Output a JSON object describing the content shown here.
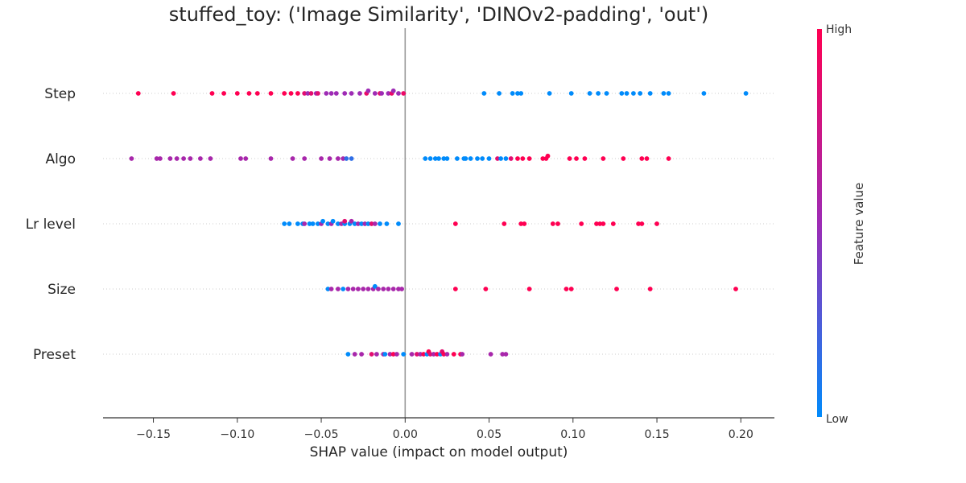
{
  "chart_data": {
    "type": "scatter",
    "subtype": "shap-beeswarm",
    "title": "stuffed_toy: ('Image Similarity', 'DINOv2-padding', 'out')",
    "xlabel": "SHAP value (impact on model output)",
    "xlim": [
      -0.18,
      0.22
    ],
    "xticks": [
      -0.15,
      -0.1,
      -0.05,
      0.0,
      0.05,
      0.1,
      0.15,
      0.2
    ],
    "xtick_labels": [
      "−0.15",
      "−0.10",
      "−0.05",
      "0.00",
      "0.05",
      "0.10",
      "0.15",
      "0.20"
    ],
    "zero_line": 0.0,
    "colorbar": {
      "label": "Feature value",
      "high_label": "High",
      "low_label": "Low",
      "low_color": "#008bfb",
      "mid_color": "#9e2bb5",
      "high_color": "#ff0052"
    },
    "features": [
      {
        "name": "Step",
        "groups": [
          {
            "v": 1.0,
            "x": [
              -0.159,
              -0.138,
              -0.115,
              -0.108,
              -0.1,
              -0.093,
              -0.088,
              -0.08,
              -0.072,
              -0.068,
              -0.064
            ]
          },
          {
            "v": 0.85,
            "x": [
              -0.06,
              -0.056,
              -0.052
            ]
          },
          {
            "v": 0.5,
            "x": [
              -0.058,
              -0.053,
              -0.047,
              -0.044,
              -0.041,
              -0.036,
              -0.032,
              -0.027,
              -0.022,
              -0.018,
              -0.014,
              -0.01,
              -0.007,
              -0.004
            ]
          },
          {
            "v": 0.9,
            "x": [
              -0.023,
              -0.015,
              -0.008,
              -0.001
            ]
          },
          {
            "v": 0.0,
            "x": [
              0.047,
              0.056,
              0.064,
              0.067,
              0.069,
              0.086,
              0.099,
              0.11,
              0.115,
              0.12,
              0.129,
              0.132,
              0.136,
              0.14,
              0.146,
              0.154,
              0.157,
              0.178,
              0.203
            ]
          }
        ]
      },
      {
        "name": "Algo",
        "groups": [
          {
            "v": 0.55,
            "x": [
              -0.163,
              -0.148,
              -0.146,
              -0.14,
              -0.136,
              -0.132,
              -0.128,
              -0.122,
              -0.116,
              -0.098,
              -0.095,
              -0.08,
              -0.067,
              -0.06,
              -0.05,
              -0.045,
              -0.04,
              -0.037
            ]
          },
          {
            "v": 0.15,
            "x": [
              -0.035,
              -0.032
            ]
          },
          {
            "v": 0.0,
            "x": [
              0.012,
              0.015,
              0.018,
              0.02,
              0.023,
              0.025,
              0.031,
              0.035,
              0.036,
              0.039,
              0.043,
              0.046,
              0.05,
              0.057,
              0.06
            ]
          },
          {
            "v": 0.85,
            "x": [
              0.055,
              0.063
            ]
          },
          {
            "v": 1.0,
            "x": [
              0.067,
              0.07,
              0.074,
              0.082,
              0.084,
              0.085,
              0.098,
              0.102,
              0.107,
              0.118,
              0.13,
              0.141,
              0.144,
              0.157
            ]
          }
        ]
      },
      {
        "name": "Lr level",
        "groups": [
          {
            "v": 0.0,
            "x": [
              -0.072,
              -0.069,
              -0.064,
              -0.061,
              -0.057,
              -0.055,
              -0.052,
              -0.049,
              -0.046,
              -0.043,
              -0.04,
              -0.036,
              -0.033,
              -0.03,
              -0.026,
              -0.022,
              -0.015,
              -0.011,
              -0.004
            ]
          },
          {
            "v": 0.55,
            "x": [
              -0.06,
              -0.05,
              -0.044,
              -0.038,
              -0.032,
              -0.028,
              -0.024,
              -0.018
            ]
          },
          {
            "v": 0.85,
            "x": [
              -0.036,
              -0.02
            ]
          },
          {
            "v": 1.0,
            "x": [
              0.03,
              0.059,
              0.069,
              0.071,
              0.088,
              0.091,
              0.105,
              0.114,
              0.116,
              0.118,
              0.124,
              0.139,
              0.141,
              0.15
            ]
          }
        ]
      },
      {
        "name": "Size",
        "groups": [
          {
            "v": 0.0,
            "x": [
              -0.046,
              -0.037,
              -0.018
            ]
          },
          {
            "v": 0.55,
            "x": [
              -0.044,
              -0.04,
              -0.034,
              -0.031,
              -0.028,
              -0.025,
              -0.022,
              -0.019,
              -0.016,
              -0.013,
              -0.01,
              -0.007,
              -0.004,
              -0.002
            ]
          },
          {
            "v": 1.0,
            "x": [
              0.03,
              0.048,
              0.074,
              0.096,
              0.099,
              0.126,
              0.146,
              0.197
            ]
          }
        ]
      },
      {
        "name": "Preset",
        "groups": [
          {
            "v": 0.0,
            "x": [
              -0.034,
              -0.012,
              -0.001,
              0.013,
              0.021
            ]
          },
          {
            "v": 0.55,
            "x": [
              -0.03,
              -0.026,
              -0.017,
              -0.013,
              -0.009,
              -0.005,
              0.004,
              0.009,
              0.017,
              0.025,
              0.034,
              0.051,
              0.058,
              0.06
            ]
          },
          {
            "v": 0.85,
            "x": [
              -0.02,
              0.007,
              0.015,
              0.022
            ]
          },
          {
            "v": 1.0,
            "x": [
              -0.007,
              0.011,
              0.014,
              0.019,
              0.023,
              0.029,
              0.033
            ]
          }
        ]
      }
    ]
  }
}
